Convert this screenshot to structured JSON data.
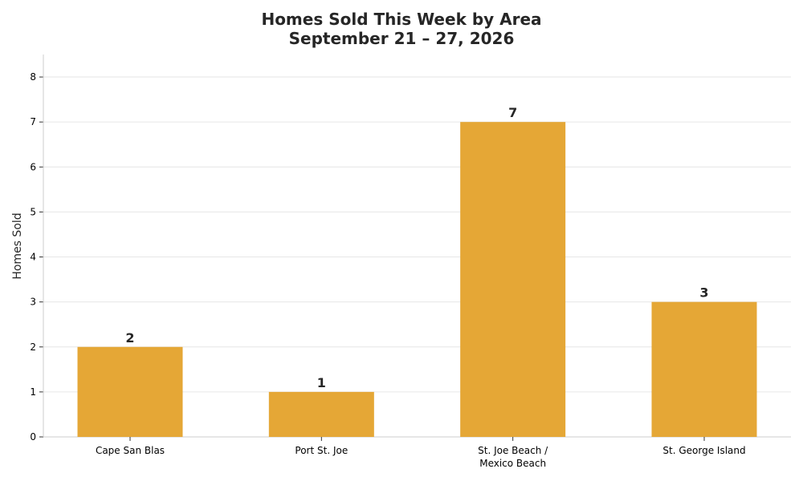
{
  "title_line1": "Homes Sold This Week by Area",
  "title_line2": "September 21 – 27, 2026",
  "chart_data": {
    "type": "bar",
    "categories": [
      "Cape San Blas",
      "Port St. Joe",
      "St. Joe Beach /\nMexico Beach",
      "St. George Island"
    ],
    "values": [
      2,
      1,
      7,
      3
    ],
    "data_labels": [
      "2",
      "1",
      "7",
      "3"
    ],
    "ylabel": "Homes Sold",
    "xlabel": "",
    "ylim": [
      0,
      8.5
    ],
    "yticks": [
      0,
      1,
      2,
      3,
      4,
      5,
      6,
      7,
      8
    ],
    "grid": "horizontal",
    "bar_color": "#e5a736",
    "grid_color": "#e6e6e6",
    "axis_color": "#cccccc",
    "text_color": "#262626",
    "legend": "none"
  }
}
